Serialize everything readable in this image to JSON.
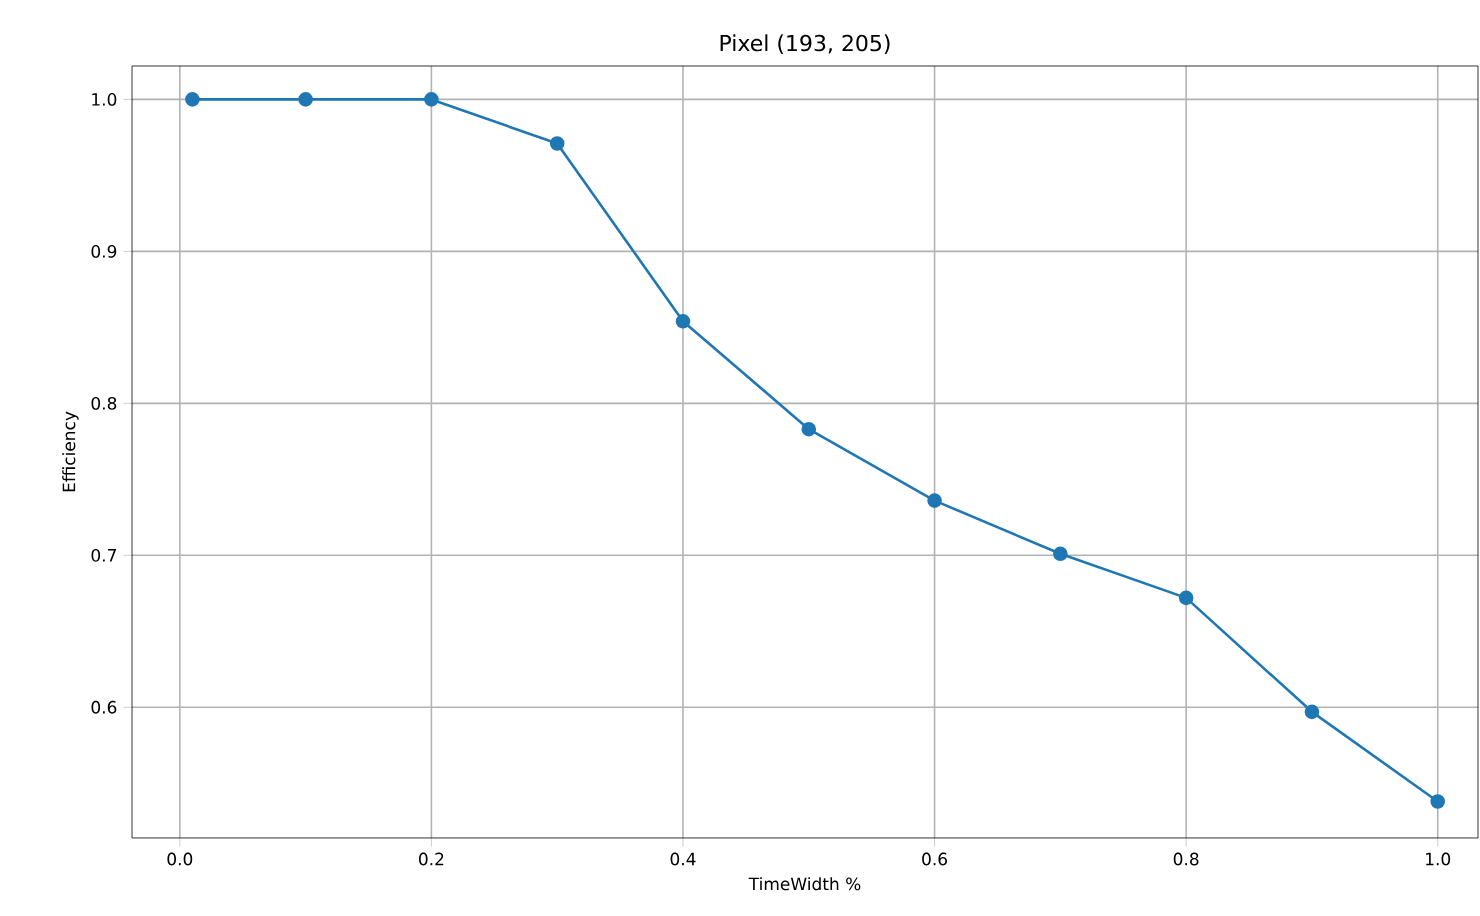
{
  "chart_data": {
    "type": "line",
    "title": "Pixel (193, 205)",
    "xlabel": "TimeWidth %",
    "ylabel": "Efficiency",
    "x": [
      0.01,
      0.1,
      0.2,
      0.3,
      0.4,
      0.5,
      0.6,
      0.7,
      0.8,
      0.9,
      1.0
    ],
    "series": [
      {
        "color": "#1f77b4",
        "values": [
          1.0,
          1.0,
          1.0,
          0.971,
          0.854,
          0.783,
          0.736,
          0.701,
          0.672,
          0.597,
          0.538
        ]
      }
    ],
    "xlim": [
      -0.038,
      1.032
    ],
    "ylim": [
      0.514,
      1.022
    ],
    "xticks": [
      {
        "value": 0,
        "label": "0.0"
      },
      0.2,
      0.4,
      0.6,
      0.8,
      {
        "value": 1,
        "label": "1.0"
      }
    ],
    "yticks": [
      {
        "value": 0.6,
        "label": "0.6"
      },
      0.7,
      0.8,
      0.9,
      {
        "value": 1,
        "label": "1.0"
      }
    ],
    "grid": true,
    "marker": "circle",
    "line_style": "solid"
  }
}
